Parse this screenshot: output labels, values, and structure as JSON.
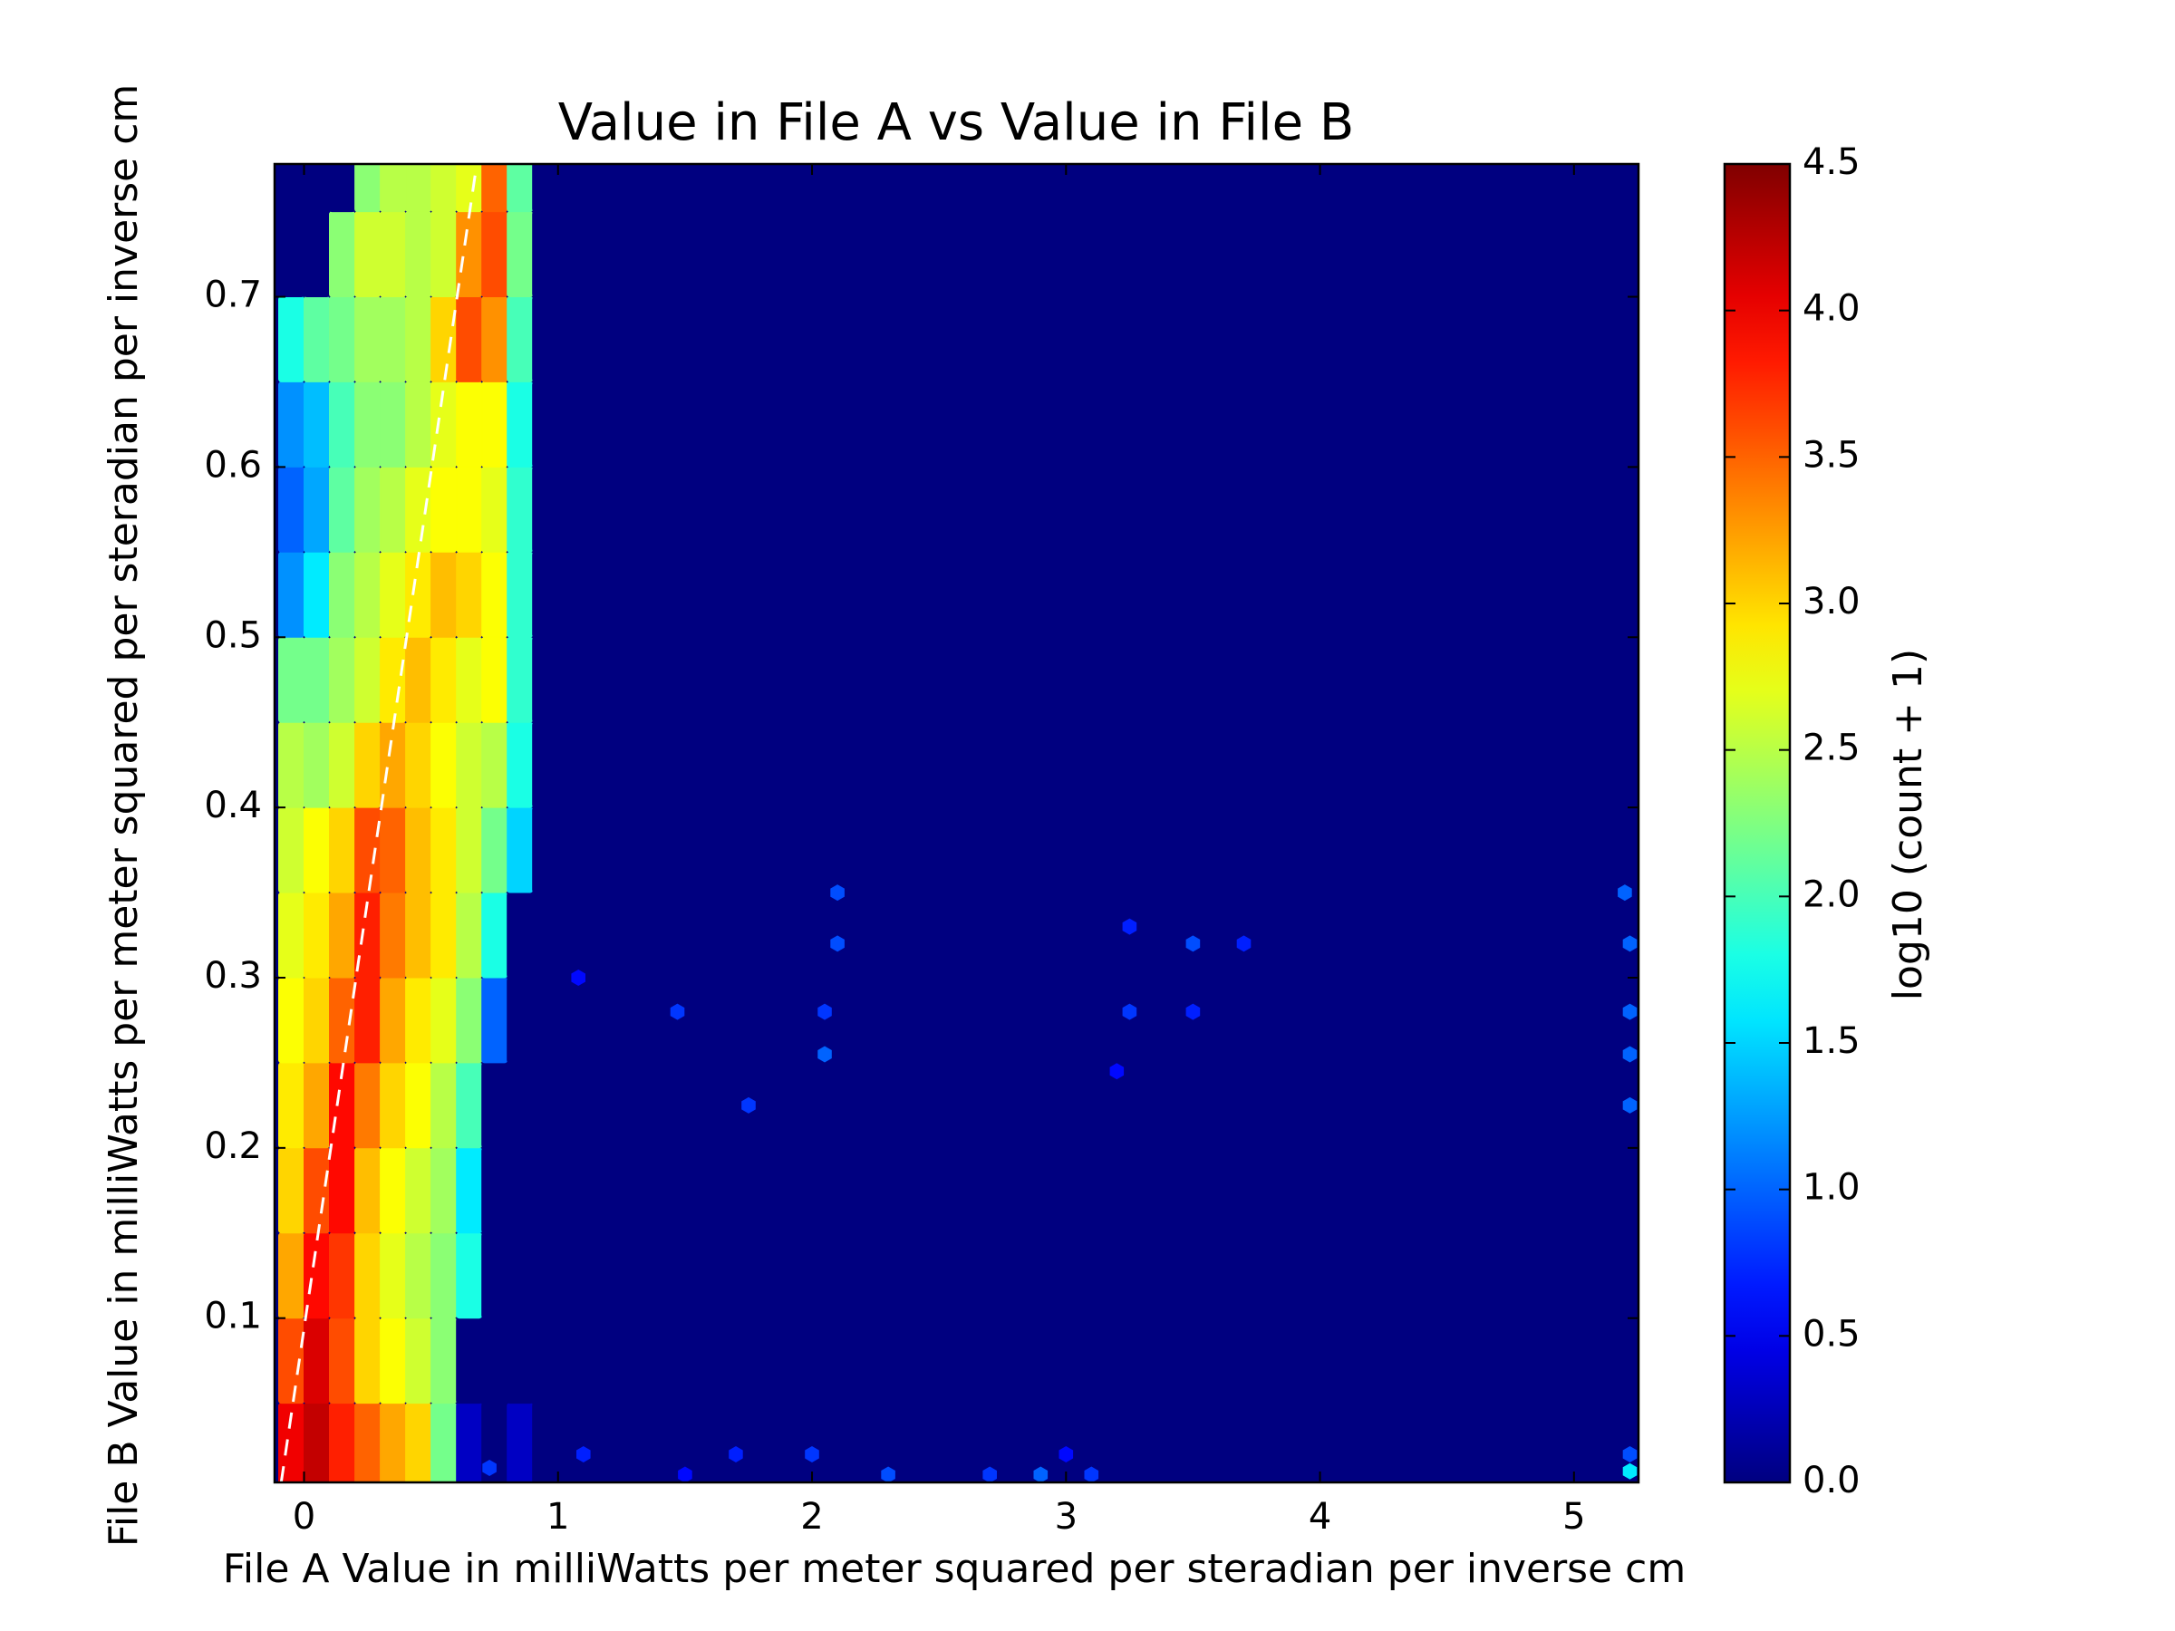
{
  "chart_data": {
    "type": "hexbin",
    "title": "Value in File A vs Value in File B",
    "xlabel": "File A Value in milliWatts per meter squared per steradian per inverse cm",
    "ylabel": "File B Value in milliWatts per meter squared per steradian per inverse cm",
    "xlim": [
      -0.116,
      5.254
    ],
    "ylim": [
      0.0035,
      0.778
    ],
    "xticks": [
      0,
      1,
      2,
      3,
      4,
      5
    ],
    "yticks": [
      0.1,
      0.2,
      0.3,
      0.4,
      0.5,
      0.6,
      0.7
    ],
    "colormap": "jet",
    "colorbar": {
      "label": "log10 (count + 1)",
      "lim": [
        0,
        4.5
      ],
      "ticks": [
        {
          "value": 0,
          "label": "0.0"
        },
        0.5,
        {
          "value": 1,
          "label": "1.0"
        },
        1.5,
        {
          "value": 2,
          "label": "2.0"
        },
        2.5,
        {
          "value": 3,
          "label": "3.0"
        },
        3.5,
        {
          "value": 4,
          "label": "4.0"
        },
        4.5
      ]
    },
    "grid": {
      "x_centers": [
        -0.05,
        0.05,
        0.15,
        0.25,
        0.35,
        0.45,
        0.55,
        0.65,
        0.75,
        0.85,
        0.95
      ],
      "y_centers": [
        0.025,
        0.075,
        0.125,
        0.175,
        0.225,
        0.275,
        0.325,
        0.375,
        0.425,
        0.475,
        0.525,
        0.575,
        0.625,
        0.675,
        0.725,
        0.775
      ],
      "values": [
        [
          4.0,
          4.2,
          3.8,
          3.5,
          3.2,
          3.0,
          2.2,
          0.3,
          0,
          0.3,
          0
        ],
        [
          3.6,
          4.1,
          3.6,
          3.0,
          2.8,
          2.6,
          2.3,
          0,
          0,
          0,
          0
        ],
        [
          3.2,
          3.9,
          3.7,
          3.0,
          2.7,
          2.5,
          2.3,
          1.8,
          0,
          0,
          0
        ],
        [
          3.0,
          3.6,
          3.9,
          3.1,
          2.8,
          2.6,
          2.4,
          1.6,
          0,
          0,
          0
        ],
        [
          2.9,
          3.2,
          3.9,
          3.4,
          3.0,
          2.8,
          2.5,
          2.0,
          0,
          0,
          0
        ],
        [
          2.8,
          3.0,
          3.5,
          3.8,
          3.2,
          2.9,
          2.7,
          2.3,
          1.0,
          0,
          0
        ],
        [
          2.7,
          2.9,
          3.2,
          3.8,
          3.4,
          3.1,
          2.9,
          2.5,
          1.8,
          0,
          0
        ],
        [
          2.6,
          2.8,
          3.0,
          3.6,
          3.5,
          3.1,
          2.9,
          2.6,
          2.2,
          1.5,
          0
        ],
        [
          2.5,
          2.4,
          2.6,
          3.0,
          3.2,
          3.0,
          2.8,
          2.6,
          2.5,
          1.8,
          0
        ],
        [
          2.2,
          2.2,
          2.4,
          2.6,
          2.9,
          3.1,
          2.9,
          2.7,
          2.8,
          1.9,
          0
        ],
        [
          1.2,
          1.6,
          2.3,
          2.5,
          2.7,
          2.9,
          3.1,
          3.0,
          2.8,
          1.9,
          0
        ],
        [
          1.0,
          1.3,
          2.1,
          2.4,
          2.5,
          2.7,
          2.8,
          2.8,
          2.7,
          1.9,
          0
        ],
        [
          1.2,
          1.4,
          2.0,
          2.3,
          2.3,
          2.5,
          2.7,
          2.8,
          2.8,
          1.8,
          0
        ],
        [
          1.8,
          2.1,
          2.2,
          2.4,
          2.4,
          2.5,
          3.0,
          3.6,
          3.3,
          2.0,
          0
        ],
        [
          0,
          0,
          2.3,
          2.6,
          2.6,
          2.5,
          2.6,
          3.3,
          3.6,
          2.2,
          0
        ],
        [
          0,
          0,
          0,
          2.3,
          2.5,
          2.5,
          2.6,
          2.7,
          3.5,
          2.1,
          0
        ]
      ]
    },
    "points": {
      "x": [
        1.08,
        1.47,
        2.1,
        2.1,
        2.05,
        1.75,
        2.05,
        3.25,
        3.5,
        3.7,
        3.25,
        3.5,
        3.2,
        5.2,
        5.22,
        5.22,
        5.22,
        5.22,
        5.22,
        5.22,
        2.3,
        2.9,
        2.0,
        1.5,
        1.7,
        2.7,
        3.1,
        1.1,
        0.73,
        3.0
      ],
      "y": [
        0.3,
        0.28,
        0.35,
        0.32,
        0.255,
        0.225,
        0.28,
        0.33,
        0.32,
        0.32,
        0.28,
        0.28,
        0.245,
        0.35,
        0.32,
        0.28,
        0.255,
        0.225,
        0.01,
        0.02,
        0.008,
        0.008,
        0.02,
        0.008,
        0.02,
        0.008,
        0.008,
        0.02,
        0.012,
        0.02
      ],
      "values": [
        0.6,
        0.8,
        0.9,
        0.9,
        1.0,
        0.8,
        0.8,
        0.7,
        0.9,
        0.7,
        0.8,
        0.7,
        0.6,
        1.0,
        1.0,
        1.0,
        1.0,
        1.0,
        1.6,
        0.9,
        0.9,
        1.0,
        0.8,
        0.6,
        0.7,
        0.8,
        0.8,
        0.7,
        0.8,
        0.6
      ]
    },
    "fit_line": {
      "x": [
        -0.09,
        0.68
      ],
      "y": [
        0.0035,
        0.778
      ],
      "color": "#ffffff",
      "dashed": true
    }
  }
}
